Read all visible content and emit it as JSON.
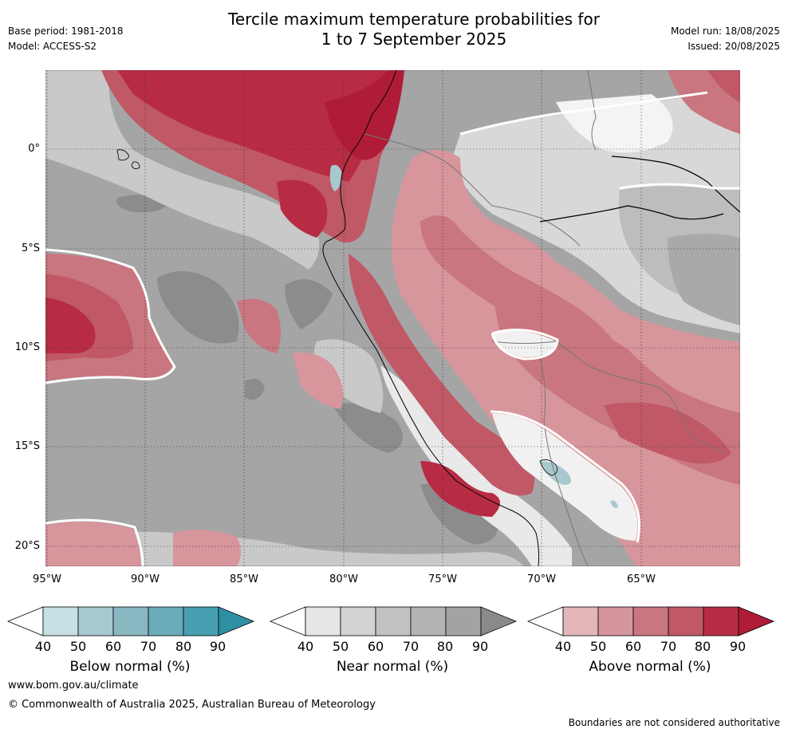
{
  "title": [
    "Tercile maximum temperature probabilities for",
    "1 to 7 September 2025"
  ],
  "meta_left": [
    "Base period: 1981-2018",
    "Model: ACCESS-S2"
  ],
  "meta_right": [
    "Model run: 18/08/2025",
    "Issued: 20/08/2025"
  ],
  "lat_labels": [
    "0°",
    "5°S",
    "10°S",
    "15°S",
    "20°S"
  ],
  "lon_labels": [
    "95°W",
    "90°W",
    "85°W",
    "80°W",
    "75°W",
    "70°W",
    "65°W"
  ],
  "colorbars": [
    {
      "title": "Below normal (%)",
      "ticks": [
        "40",
        "50",
        "60",
        "70",
        "80",
        "90"
      ],
      "colors": [
        "#ffffff",
        "#c7e0e4",
        "#a7c8ce",
        "#88b7c2",
        "#6aabb8",
        "#47a0b1",
        "#2f8fa3"
      ]
    },
    {
      "title": "Near normal (%)",
      "ticks": [
        "40",
        "50",
        "60",
        "70",
        "80",
        "90"
      ],
      "colors": [
        "#ffffff",
        "#e6e6e6",
        "#d3d3d3",
        "#c2c2c2",
        "#b3b3b3",
        "#a3a3a3",
        "#8a8a8a"
      ]
    },
    {
      "title": "Above normal (%)",
      "ticks": [
        "40",
        "50",
        "60",
        "70",
        "80",
        "90"
      ],
      "colors": [
        "#ffffff",
        "#e3b6ba",
        "#d4959c",
        "#c97680",
        "#c05866",
        "#b72c43",
        "#b01c38"
      ]
    }
  ],
  "footer": {
    "url": "www.bom.gov.au/climate",
    "copyright": "© Commonwealth of Australia 2025, Australian Bureau of Meteorology",
    "disclaimer": "Boundaries are not considered authoritative"
  }
}
